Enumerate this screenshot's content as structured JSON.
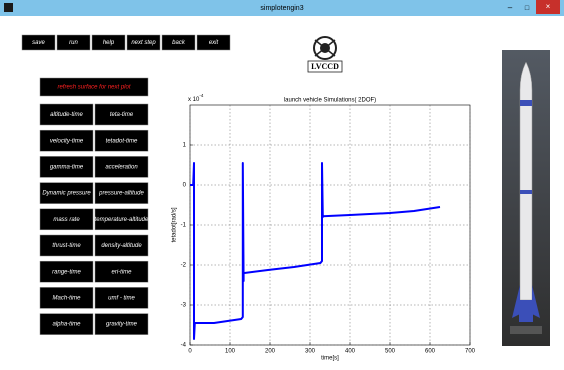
{
  "window": {
    "title": "simplotengin3"
  },
  "toolbar": [
    "save",
    "run",
    "help",
    "next step",
    "back",
    "exit"
  ],
  "logo": {
    "text": "LVCCD"
  },
  "refresh_button": "refresh surface for next plot",
  "plot_buttons": {
    "left": [
      "altitude-time",
      "velocity-time",
      "gamma-time",
      "Dynamic pressure",
      "mass rate",
      "thrust-time",
      "range-time",
      "Mach-time",
      "alpha-time"
    ],
    "right": [
      "teta-time",
      "tetadot-time",
      "acceleration",
      "pressure-altitude",
      "temperature-altitude",
      "density-altitude",
      "eri-time",
      "umf - time",
      "gravity-time"
    ]
  },
  "chart_data": {
    "type": "line",
    "title": "launch vehicle Simulations( 2DOF)",
    "x_label": "time[s]",
    "y_label": "tetadot[rad/s]",
    "y_exponent": "x 10",
    "y_exponent_power": "-4",
    "x": [
      0,
      8,
      10,
      10,
      12,
      60,
      128,
      132,
      132,
      134,
      134,
      136,
      200,
      260,
      326,
      330,
      330,
      332,
      332,
      400,
      500,
      560,
      625
    ],
    "series": [
      {
        "name": "tetadot",
        "color": "#0000ff",
        "values": [
          0,
          0,
          0.55,
          -3.85,
          -3.45,
          -3.45,
          -3.35,
          -3.3,
          0.55,
          -2.4,
          -2.2,
          -2.2,
          -2.12,
          -2.05,
          -1.95,
          -1.9,
          0.55,
          -0.8,
          -0.78,
          -0.75,
          -0.7,
          -0.65,
          -0.55
        ]
      }
    ],
    "xlim": [
      0,
      700
    ],
    "xticks": [
      0,
      100,
      200,
      300,
      400,
      500,
      600,
      700
    ],
    "ylim": [
      -4,
      2
    ],
    "yticks": [
      -4,
      -3,
      -2,
      -1,
      0,
      1
    ],
    "grid": true
  }
}
